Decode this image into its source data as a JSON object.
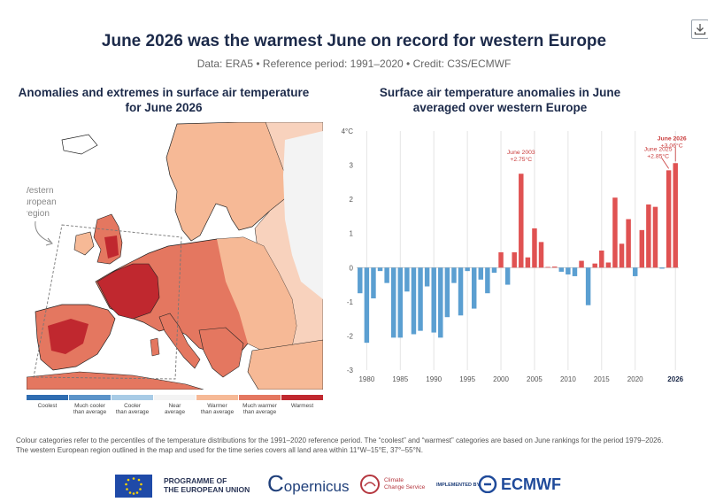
{
  "header": {
    "title": "June 2026 was the warmest June on record for western Europe",
    "subtitle": "Data: ERA5 • Reference period: 1991–2020 • Credit: C3S/ECMWF"
  },
  "map": {
    "title_line1": "Anomalies and extremes in surface air temperature",
    "title_line2": "for June 2026",
    "region_label_line1": "Western",
    "region_label_line2": "European",
    "region_label_line3": "region"
  },
  "legend": [
    {
      "line1": "Coolest",
      "line2": "",
      "color": "#2f6db1"
    },
    {
      "line1": "Much cooler",
      "line2": "than average",
      "color": "#5b93c9"
    },
    {
      "line1": "Cooler",
      "line2": "than average",
      "color": "#a8cbe6"
    },
    {
      "line1": "Near",
      "line2": "average",
      "color": "#f3f3f3"
    },
    {
      "line1": "Warmer",
      "line2": "than average",
      "color": "#f6b996"
    },
    {
      "line1": "Much warmer",
      "line2": "than average",
      "color": "#e47760"
    },
    {
      "line1": "Warmest",
      "line2": "",
      "color": "#c0282f"
    }
  ],
  "chart": {
    "title_line1": "Surface air temperature anomalies in June",
    "title_line2": "averaged over western Europe"
  },
  "chart_data": {
    "type": "bar",
    "title": "Surface air temperature anomalies in June averaged over western Europe",
    "xlabel": "",
    "ylabel": "",
    "y_unit_label": "4°C",
    "ylim": [
      -3,
      4
    ],
    "yticks": [
      "4°C",
      "3",
      "2",
      "1",
      "0",
      "-1",
      "-2",
      "-3"
    ],
    "xticks": [
      "1980",
      "1985",
      "1990",
      "1995",
      "2000",
      "2005",
      "2010",
      "2015",
      "2020",
      "2026"
    ],
    "grid": "vertical",
    "colors": {
      "positive": "#e05252",
      "negative": "#5b9fd1"
    },
    "x": [
      1979,
      1980,
      1981,
      1982,
      1983,
      1984,
      1985,
      1986,
      1987,
      1988,
      1989,
      1990,
      1991,
      1992,
      1993,
      1994,
      1995,
      1996,
      1997,
      1998,
      1999,
      2000,
      2001,
      2002,
      2003,
      2004,
      2005,
      2006,
      2007,
      2008,
      2009,
      2010,
      2011,
      2012,
      2013,
      2014,
      2015,
      2016,
      2017,
      2018,
      2019,
      2020,
      2021,
      2022,
      2023,
      2024,
      2025,
      2026
    ],
    "values": [
      -0.75,
      -2.2,
      -0.9,
      -0.1,
      -0.45,
      -2.05,
      -2.05,
      -0.7,
      -1.95,
      -1.85,
      -0.55,
      -1.9,
      -2.05,
      -1.45,
      -0.45,
      -1.4,
      -0.1,
      -1.2,
      -0.35,
      -0.75,
      -0.15,
      0.45,
      -0.5,
      0.45,
      2.75,
      0.3,
      1.15,
      0.75,
      0.02,
      0.03,
      -0.12,
      -0.2,
      -0.25,
      0.2,
      -1.1,
      0.12,
      0.5,
      0.15,
      2.05,
      0.7,
      1.42,
      -0.25,
      1.1,
      1.85,
      1.78,
      -0.03,
      2.85,
      3.06
    ],
    "annotations": [
      {
        "year": 2003,
        "line1": "June 2003",
        "line2": "+2.75°C"
      },
      {
        "year": 2025,
        "line1": "June 2025",
        "line2": "+2.85°C"
      },
      {
        "year": 2026,
        "line1": "June 2026",
        "line2": "+3.06°C"
      }
    ]
  },
  "footnote": {
    "line1": "Colour categories refer to the percentiles of the temperature distributions for the 1991–2020 reference period. The “coolest” and “warmest” categories are based on June rankings for the period 1979–2026.",
    "line2": "The western European region outlined in the map and used for the time series covers all land area within 11°W–15°E, 37°–55°N."
  },
  "logos": {
    "eu_line1": "PROGRAMME OF",
    "eu_line2": "THE EUROPEAN UNION",
    "copernicus": "opernicus",
    "copernicus_c": "C",
    "climate_line1": "Climate",
    "climate_line2": "Change Service",
    "implemented": "IMPLEMENTED BY",
    "ecmwf": "ECMWF"
  }
}
